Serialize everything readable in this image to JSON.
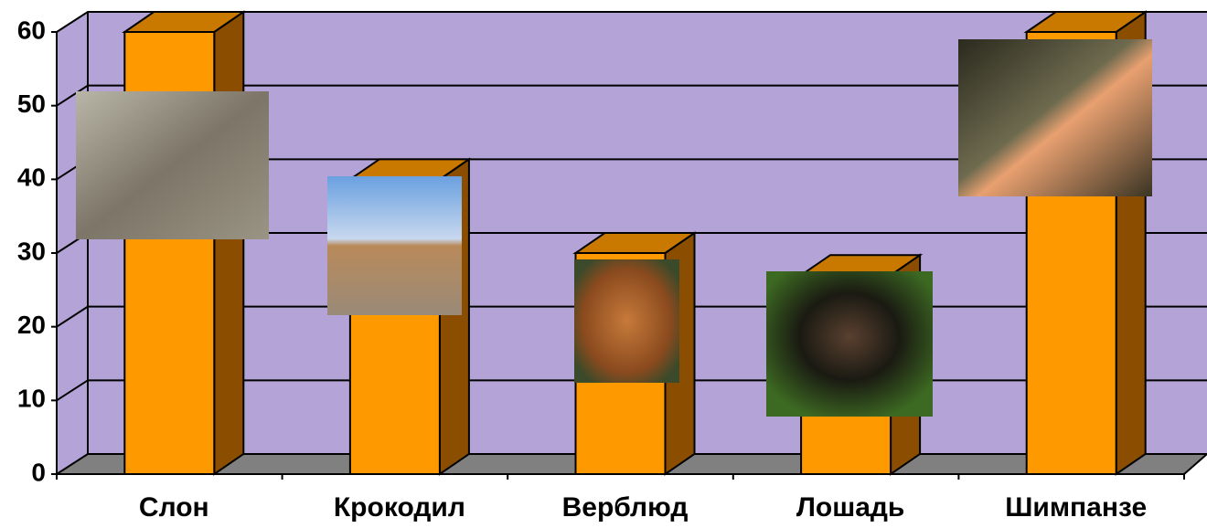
{
  "chart_data": {
    "type": "bar3d",
    "categories": [
      "Слон",
      "Крокодил",
      "Верблюд",
      "Лошадь",
      "Шимпанзе"
    ],
    "values": [
      60,
      40,
      30,
      27,
      60
    ],
    "color": "#ff9900",
    "ylim": [
      0,
      60
    ],
    "yticks": [
      0,
      10,
      20,
      30,
      40,
      50,
      60
    ],
    "grid": true
  }
}
